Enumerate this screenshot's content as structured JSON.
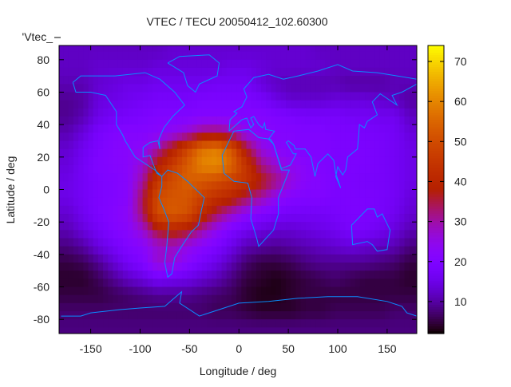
{
  "chart_data": {
    "type": "heatmap",
    "title": "VTEC / TECU 20050412_102.60300",
    "xlabel": "Longitude / deg",
    "ylabel": "Latitude / deg",
    "legend_entry": "'Vtec_",
    "xlim": [
      -182,
      180
    ],
    "ylim": [
      -88.75,
      88.75
    ],
    "xticks": [
      -150,
      -100,
      -50,
      0,
      50,
      100,
      150
    ],
    "yticks": [
      -80,
      -60,
      -40,
      -20,
      0,
      20,
      40,
      60,
      80
    ],
    "colorbar": {
      "range": [
        2,
        74
      ],
      "ticks": [
        10,
        20,
        30,
        40,
        50,
        60,
        70
      ],
      "palette": "black-blue-violet-red-orange-yellow"
    },
    "grid_lon": [
      -172.5,
      -157.5,
      -142.5,
      -127.5,
      -112.5,
      -97.5,
      -82.5,
      -67.5,
      -52.5,
      -37.5,
      -22.5,
      -7.5,
      7.5,
      22.5,
      37.5,
      52.5,
      67.5,
      82.5,
      97.5,
      112.5,
      127.5,
      142.5,
      157.5,
      172.5
    ],
    "grid_lat": [
      85,
      75,
      65,
      55,
      45,
      35,
      25,
      15,
      5,
      -5,
      -15,
      -25,
      -35,
      -45,
      -55,
      -65,
      -75,
      -85
    ],
    "values": [
      [
        12,
        12,
        12,
        12,
        12,
        12,
        12,
        13,
        13,
        13,
        13,
        13,
        13,
        13,
        13,
        13,
        13,
        12,
        12,
        12,
        12,
        12,
        12,
        12
      ],
      [
        12,
        12,
        13,
        13,
        13,
        13,
        14,
        14,
        14,
        14,
        14,
        15,
        15,
        14,
        13,
        13,
        13,
        13,
        12,
        12,
        12,
        12,
        12,
        12
      ],
      [
        11,
        11,
        13,
        14,
        15,
        15,
        16,
        16,
        16,
        16,
        17,
        17,
        17,
        14,
        12,
        11,
        11,
        11,
        11,
        10,
        10,
        10,
        11,
        11
      ],
      [
        9,
        10,
        14,
        15,
        16,
        17,
        18,
        18,
        18,
        19,
        19,
        19,
        19,
        18,
        15,
        13,
        13,
        13,
        14,
        14,
        14,
        13,
        12,
        10
      ],
      [
        9,
        11,
        15,
        17,
        18,
        19,
        20,
        20,
        20,
        21,
        21,
        21,
        21,
        21,
        20,
        19,
        18,
        18,
        18,
        17,
        17,
        16,
        16,
        12
      ],
      [
        11,
        14,
        18,
        20,
        21,
        21,
        22,
        24,
        27,
        32,
        33,
        30,
        24,
        22,
        21,
        21,
        20,
        20,
        19,
        19,
        18,
        18,
        17,
        14
      ],
      [
        13,
        16,
        19,
        21,
        22,
        23,
        30,
        38,
        48,
        57,
        59,
        52,
        36,
        26,
        22,
        21,
        20,
        20,
        19,
        19,
        19,
        18,
        17,
        15
      ],
      [
        14,
        17,
        20,
        21,
        22,
        27,
        38,
        46,
        53,
        60,
        61,
        55,
        44,
        32,
        27,
        24,
        22,
        20,
        19,
        19,
        19,
        18,
        17,
        15
      ],
      [
        15,
        17,
        19,
        20,
        22,
        30,
        45,
        50,
        54,
        52,
        50,
        47,
        44,
        38,
        32,
        26,
        22,
        21,
        19,
        19,
        18,
        18,
        17,
        15
      ],
      [
        15,
        17,
        19,
        20,
        22,
        34,
        50,
        52,
        52,
        47,
        43,
        40,
        34,
        30,
        24,
        21,
        20,
        20,
        19,
        19,
        19,
        18,
        17,
        14
      ],
      [
        13,
        16,
        19,
        21,
        23,
        33,
        50,
        53,
        51,
        42,
        34,
        28,
        23,
        20,
        18,
        17,
        17,
        17,
        18,
        19,
        19,
        18,
        16,
        13
      ],
      [
        11,
        14,
        17,
        20,
        22,
        27,
        36,
        40,
        37,
        30,
        24,
        19,
        16,
        14,
        13,
        13,
        14,
        15,
        16,
        18,
        18,
        16,
        14,
        11
      ],
      [
        8,
        10,
        14,
        17,
        20,
        22,
        27,
        28,
        25,
        22,
        19,
        15,
        11,
        10,
        9,
        10,
        11,
        12,
        13,
        14,
        13,
        12,
        11,
        8
      ],
      [
        5,
        6,
        9,
        13,
        17,
        20,
        27,
        27,
        22,
        18,
        15,
        11,
        7,
        5,
        5,
        6,
        8,
        9,
        9,
        9,
        9,
        8,
        7,
        5
      ],
      [
        4,
        4,
        6,
        9,
        12,
        14,
        17,
        16,
        15,
        13,
        11,
        8,
        5,
        4,
        3,
        4,
        5,
        6,
        7,
        6,
        5,
        5,
        5,
        4
      ],
      [
        5,
        5,
        5,
        6,
        7,
        8,
        9,
        9,
        9,
        8,
        7,
        6,
        4,
        3,
        3,
        4,
        5,
        5,
        5,
        5,
        5,
        5,
        5,
        5
      ],
      [
        7,
        7,
        7,
        7,
        7,
        7,
        7,
        7,
        7,
        7,
        6,
        6,
        5,
        4,
        4,
        4,
        5,
        5,
        6,
        6,
        6,
        6,
        7,
        7
      ],
      [
        8,
        8,
        8,
        8,
        8,
        8,
        8,
        8,
        8,
        8,
        8,
        8,
        8,
        8,
        8,
        8,
        8,
        8,
        8,
        8,
        8,
        8,
        8,
        8
      ]
    ],
    "coastline_color": "#0a8cff",
    "coastlines": [
      {
        "name": "north-america",
        "points": [
          [
            -168,
            66
          ],
          [
            -160,
            70
          ],
          [
            -140,
            70
          ],
          [
            -125,
            70
          ],
          [
            -95,
            72
          ],
          [
            -80,
            68
          ],
          [
            -65,
            60
          ],
          [
            -55,
            52
          ],
          [
            -67,
            45
          ],
          [
            -76,
            38
          ],
          [
            -81,
            31
          ],
          [
            -80,
            25
          ],
          [
            -82,
            30
          ],
          [
            -90,
            29
          ],
          [
            -97,
            26
          ],
          [
            -97,
            20
          ],
          [
            -90,
            21
          ],
          [
            -87,
            16
          ],
          [
            -83,
            10
          ],
          [
            -78,
            8
          ],
          [
            -85,
            12
          ],
          [
            -95,
            16
          ],
          [
            -105,
            20
          ],
          [
            -110,
            25
          ],
          [
            -115,
            30
          ],
          [
            -118,
            34
          ],
          [
            -124,
            40
          ],
          [
            -124,
            48
          ],
          [
            -135,
            58
          ],
          [
            -150,
            60
          ],
          [
            -165,
            60
          ],
          [
            -168,
            66
          ]
        ]
      },
      {
        "name": "south-america",
        "points": [
          [
            -78,
            8
          ],
          [
            -72,
            12
          ],
          [
            -62,
            10
          ],
          [
            -52,
            5
          ],
          [
            -35,
            -5
          ],
          [
            -38,
            -13
          ],
          [
            -41,
            -22
          ],
          [
            -48,
            -26
          ],
          [
            -58,
            -35
          ],
          [
            -65,
            -42
          ],
          [
            -68,
            -52
          ],
          [
            -72,
            -54
          ],
          [
            -75,
            -45
          ],
          [
            -73,
            -35
          ],
          [
            -71,
            -20
          ],
          [
            -76,
            -12
          ],
          [
            -81,
            -5
          ],
          [
            -78,
            2
          ],
          [
            -78,
            8
          ]
        ]
      },
      {
        "name": "greenland",
        "points": [
          [
            -72,
            78
          ],
          [
            -60,
            82
          ],
          [
            -30,
            83
          ],
          [
            -20,
            78
          ],
          [
            -22,
            70
          ],
          [
            -40,
            65
          ],
          [
            -44,
            60
          ],
          [
            -52,
            64
          ],
          [
            -56,
            72
          ],
          [
            -72,
            78
          ]
        ]
      },
      {
        "name": "africa",
        "points": [
          [
            -17,
            21
          ],
          [
            -10,
            30
          ],
          [
            -5,
            36
          ],
          [
            10,
            37
          ],
          [
            20,
            32
          ],
          [
            32,
            31
          ],
          [
            35,
            28
          ],
          [
            43,
            12
          ],
          [
            51,
            12
          ],
          [
            40,
            -5
          ],
          [
            40,
            -15
          ],
          [
            35,
            -25
          ],
          [
            20,
            -35
          ],
          [
            18,
            -30
          ],
          [
            12,
            -18
          ],
          [
            13,
            -5
          ],
          [
            9,
            4
          ],
          [
            -5,
            5
          ],
          [
            -15,
            10
          ],
          [
            -17,
            21
          ]
        ]
      },
      {
        "name": "eurasia",
        "points": [
          [
            -10,
            36
          ],
          [
            -9,
            43
          ],
          [
            -2,
            47
          ],
          [
            -5,
            48
          ],
          [
            3,
            51
          ],
          [
            8,
            57
          ],
          [
            5,
            62
          ],
          [
            15,
            69
          ],
          [
            30,
            71
          ],
          [
            45,
            68
          ],
          [
            60,
            70
          ],
          [
            80,
            73
          ],
          [
            100,
            77
          ],
          [
            115,
            73
          ],
          [
            140,
            72
          ],
          [
            160,
            70
          ],
          [
            180,
            68
          ],
          [
            180,
            65
          ],
          [
            165,
            60
          ],
          [
            155,
            58
          ],
          [
            160,
            52
          ],
          [
            143,
            59
          ],
          [
            135,
            54
          ],
          [
            140,
            46
          ],
          [
            130,
            42
          ],
          [
            127,
            38
          ],
          [
            122,
            40
          ],
          [
            121,
            32
          ],
          [
            120,
            25
          ],
          [
            110,
            20
          ],
          [
            108,
            12
          ],
          [
            105,
            9
          ],
          [
            100,
            14
          ],
          [
            98,
            8
          ],
          [
            103,
            1
          ],
          [
            98,
            10
          ],
          [
            96,
            18
          ],
          [
            90,
            22
          ],
          [
            80,
            16
          ],
          [
            77,
            8
          ],
          [
            73,
            20
          ],
          [
            67,
            25
          ],
          [
            57,
            25
          ],
          [
            56,
            27
          ],
          [
            50,
            30
          ],
          [
            48,
            29
          ],
          [
            55,
            22
          ],
          [
            58,
            22
          ],
          [
            52,
            15
          ],
          [
            43,
            13
          ],
          [
            35,
            28
          ],
          [
            30,
            31
          ],
          [
            36,
            36
          ],
          [
            27,
            37
          ],
          [
            26,
            41
          ],
          [
            24,
            38
          ],
          [
            20,
            40
          ],
          [
            15,
            45
          ],
          [
            12,
            44
          ],
          [
            15,
            40
          ],
          [
            12,
            38
          ],
          [
            8,
            44
          ],
          [
            3,
            43
          ],
          [
            -10,
            36
          ]
        ]
      },
      {
        "name": "australia",
        "points": [
          [
            114,
            -22
          ],
          [
            122,
            -17
          ],
          [
            130,
            -12
          ],
          [
            137,
            -12
          ],
          [
            140,
            -17
          ],
          [
            145,
            -15
          ],
          [
            153,
            -25
          ],
          [
            150,
            -37
          ],
          [
            140,
            -38
          ],
          [
            135,
            -34
          ],
          [
            130,
            -32
          ],
          [
            115,
            -34
          ],
          [
            114,
            -22
          ]
        ]
      },
      {
        "name": "antarctica",
        "points": [
          [
            -180,
            -78
          ],
          [
            -160,
            -78
          ],
          [
            -150,
            -76
          ],
          [
            -120,
            -74
          ],
          [
            -100,
            -73
          ],
          [
            -75,
            -72
          ],
          [
            -60,
            -64
          ],
          [
            -58,
            -63
          ],
          [
            -60,
            -70
          ],
          [
            -40,
            -78
          ],
          [
            -20,
            -74
          ],
          [
            0,
            -70
          ],
          [
            30,
            -69
          ],
          [
            60,
            -67
          ],
          [
            90,
            -66
          ],
          [
            120,
            -66
          ],
          [
            150,
            -69
          ],
          [
            165,
            -72
          ],
          [
            170,
            -76
          ],
          [
            180,
            -78
          ]
        ]
      }
    ]
  }
}
